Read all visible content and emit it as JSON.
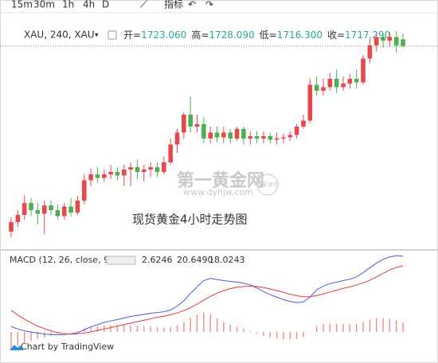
{
  "toolbar": {
    "intervals": [
      "15m",
      "30m",
      "1h",
      "4h",
      "D"
    ],
    "indicators": "指标"
  },
  "chart_data": [
    {
      "type": "candlestick",
      "title": "XAU, 240, XAU",
      "ohlc_legend": [
        {
          "label": "开=",
          "value": "1723.060"
        },
        {
          "label": "高=",
          "value": "1728.090"
        },
        {
          "label": "低=",
          "value": "1716.300"
        },
        {
          "label": "收=",
          "value": "1717.290"
        }
      ],
      "annotation": "现货黄金4小时走势图",
      "watermark": {
        "name": "第一黄金网",
        "url": "www.dyhjw.com",
        "badge": "独家发布"
      },
      "open": [
        1562,
        1570,
        1576,
        1586,
        1580,
        1577,
        1584,
        1580,
        1575,
        1583,
        1578,
        1588,
        1605,
        1610,
        1607,
        1610,
        1612,
        1609,
        1614,
        1616,
        1612,
        1614,
        1616,
        1612,
        1620,
        1635,
        1645,
        1660,
        1650,
        1652,
        1640,
        1645,
        1641,
        1645,
        1640,
        1648,
        1640,
        1642,
        1640,
        1642,
        1639,
        1640,
        1641,
        1643,
        1650,
        1655,
        1685,
        1680,
        1683,
        1690,
        1683,
        1686,
        1690,
        1687,
        1707,
        1718,
        1725,
        1722,
        1725,
        1723.06
      ],
      "high": [
        1574,
        1580,
        1592,
        1590,
        1586,
        1588,
        1588,
        1585,
        1586,
        1590,
        1592,
        1610,
        1615,
        1616,
        1614,
        1618,
        1616,
        1618,
        1620,
        1622,
        1618,
        1620,
        1620,
        1625,
        1640,
        1648,
        1662,
        1675,
        1660,
        1658,
        1650,
        1650,
        1650,
        1648,
        1650,
        1650,
        1646,
        1646,
        1646,
        1645,
        1645,
        1644,
        1646,
        1652,
        1660,
        1690,
        1692,
        1690,
        1695,
        1698,
        1692,
        1694,
        1698,
        1710,
        1724,
        1728,
        1728,
        1729,
        1730,
        1728.09
      ],
      "low": [
        1557,
        1566,
        1572,
        1575,
        1568,
        1560,
        1576,
        1572,
        1572,
        1575,
        1576,
        1585,
        1600,
        1603,
        1604,
        1606,
        1605,
        1600,
        1600,
        1606,
        1604,
        1608,
        1608,
        1610,
        1618,
        1628,
        1640,
        1645,
        1645,
        1636,
        1636,
        1637,
        1636,
        1636,
        1638,
        1635,
        1635,
        1636,
        1636,
        1636,
        1635,
        1636,
        1638,
        1640,
        1648,
        1653,
        1676,
        1676,
        1680,
        1678,
        1680,
        1682,
        1682,
        1685,
        1703,
        1713,
        1716,
        1717,
        1712,
        1716.3
      ],
      "close": [
        1570,
        1576,
        1586,
        1580,
        1577,
        1584,
        1580,
        1575,
        1583,
        1578,
        1588,
        1605,
        1610,
        1607,
        1610,
        1612,
        1609,
        1614,
        1616,
        1612,
        1614,
        1616,
        1612,
        1620,
        1635,
        1645,
        1660,
        1650,
        1652,
        1640,
        1645,
        1641,
        1645,
        1640,
        1648,
        1640,
        1642,
        1640,
        1642,
        1639,
        1640,
        1641,
        1643,
        1650,
        1655,
        1685,
        1680,
        1683,
        1690,
        1683,
        1686,
        1690,
        1687,
        1707,
        1718,
        1725,
        1722,
        1725,
        1718,
        1717.29
      ],
      "up_color": "#e8484c",
      "down_color": "#4caf50",
      "last_price_line": true,
      "ylim": [
        1548,
        1736
      ]
    },
    {
      "type": "macd",
      "title": "MACD (12, 26, close, 9)",
      "series": [
        {
          "kind": "histogram",
          "color": "#f08a8a",
          "last_value_label": "2.6246",
          "label_color": "#e53935",
          "values": [
            -4.4,
            -3.8,
            -3.2,
            -2.5,
            -1.9,
            -1.5,
            -1.0,
            -0.6,
            -0.2,
            0.1,
            0.3,
            0.9,
            1.4,
            1.6,
            1.8,
            1.8,
            1.8,
            1.8,
            1.8,
            1.7,
            1.6,
            1.5,
            1.3,
            1.2,
            1.3,
            1.8,
            2.7,
            3.9,
            4.7,
            5.3,
            4.9,
            3.7,
            2.7,
            2.0,
            1.4,
            0.9,
            0.3,
            -0.4,
            -1.1,
            -1.5,
            -1.8,
            -2.0,
            -2.0,
            -1.9,
            -1.4,
            -0.1,
            1.6,
            2.1,
            2.3,
            2.2,
            2.1,
            2.1,
            2.2,
            2.8,
            3.4,
            3.8,
            3.8,
            3.6,
            3.2,
            2.6246
          ]
        },
        {
          "kind": "line",
          "color": "#4a5bd6",
          "last_value_label": "20.6490",
          "label_color": "#2a3bb0",
          "values": [
            1.5,
            0.8,
            0.3,
            0.0,
            -0.3,
            -0.6,
            -0.7,
            -0.8,
            -0.7,
            -0.5,
            -0.2,
            0.6,
            1.4,
            2.0,
            2.6,
            3.0,
            3.4,
            3.8,
            4.2,
            4.5,
            4.8,
            5.1,
            5.3,
            5.5,
            6.0,
            7.0,
            8.5,
            10.5,
            12.3,
            14.0,
            14.6,
            14.3,
            14.0,
            13.8,
            13.6,
            13.3,
            12.8,
            12.0,
            11.0,
            10.2,
            9.5,
            8.8,
            8.3,
            8.0,
            8.2,
            9.5,
            11.5,
            12.5,
            13.2,
            13.6,
            14.0,
            14.4,
            15.0,
            16.2,
            17.5,
            18.8,
            19.8,
            20.5,
            20.8,
            20.649
          ]
        },
        {
          "kind": "line",
          "color": "#e53935",
          "last_value_label": "18.0243",
          "label_color": "#e53935",
          "values": [
            5.9,
            4.6,
            3.5,
            2.5,
            1.6,
            0.9,
            0.3,
            -0.2,
            -0.5,
            -0.6,
            -0.5,
            -0.3,
            0.0,
            0.4,
            0.8,
            1.2,
            1.6,
            2.0,
            2.4,
            2.8,
            3.2,
            3.6,
            4.0,
            4.3,
            4.7,
            5.2,
            5.8,
            6.6,
            7.6,
            8.7,
            9.7,
            10.6,
            11.3,
            11.8,
            12.2,
            12.4,
            12.5,
            12.4,
            12.1,
            11.7,
            11.3,
            10.8,
            10.3,
            9.9,
            9.6,
            9.6,
            9.9,
            10.4,
            10.9,
            11.4,
            11.9,
            12.3,
            12.8,
            13.4,
            14.1,
            15.0,
            16.0,
            16.9,
            17.6,
            18.0243
          ]
        }
      ],
      "ylim": [
        -7.6,
        21.5
      ]
    }
  ],
  "footer": "Chart by TradingView"
}
